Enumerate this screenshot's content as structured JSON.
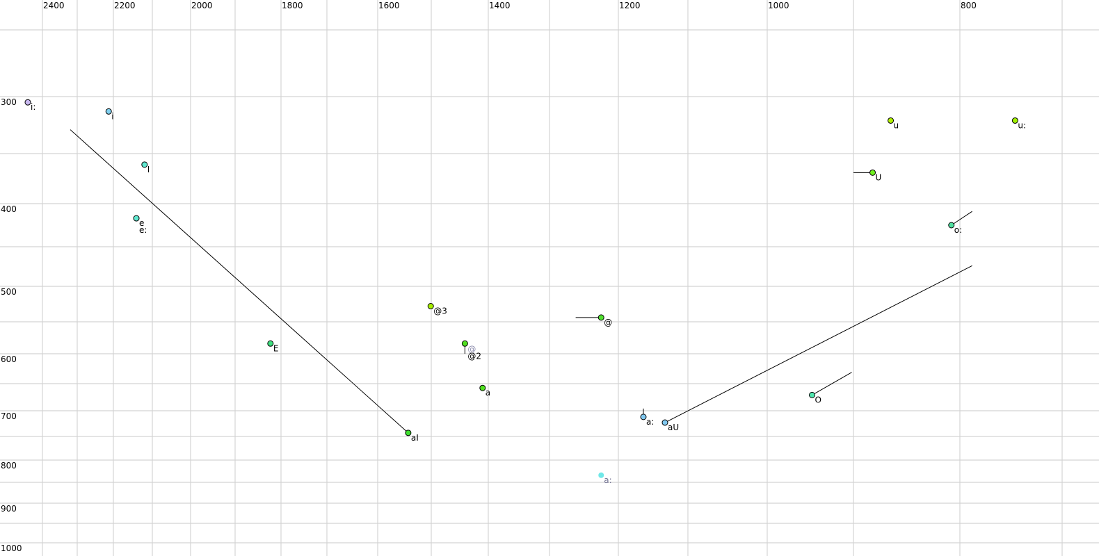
{
  "chart_data": {
    "type": "scatter",
    "title": "",
    "xlabel": "",
    "ylabel": "",
    "x_axis": "F2 (reversed, non-linear scale)",
    "y_axis": "F1 (increasing downward, non-linear scale)",
    "grid": true,
    "x_ticks": [
      2400,
      2200,
      2000,
      1800,
      1600,
      1400,
      1200,
      1000,
      800
    ],
    "y_ticks": [
      300,
      400,
      500,
      600,
      700,
      800,
      900,
      1000
    ],
    "x_gridlines": [
      2400,
      2300,
      2200,
      2100,
      2000,
      1900,
      1800,
      1700,
      1600,
      1500,
      1400,
      1300,
      1200,
      1100,
      1000,
      900,
      800,
      700
    ],
    "y_gridlines": [
      250,
      300,
      350,
      400,
      450,
      500,
      550,
      600,
      650,
      700,
      750,
      800,
      850,
      900,
      950,
      1000
    ],
    "points": [
      {
        "label": "i:",
        "f2": 2442,
        "f1": 305,
        "color": "#c8b8f0"
      },
      {
        "label": "i",
        "f2": 2213,
        "f1": 313,
        "color": "#80d0f0"
      },
      {
        "label": "I",
        "f2": 2120,
        "f1": 361,
        "color": "#60e8d0"
      },
      {
        "label": "e\ne:",
        "f2": 2141,
        "f1": 417,
        "color": "#60e8d0"
      },
      {
        "label": "E",
        "f2": 1823,
        "f1": 584,
        "color": "#40e080",
        "line_to": null
      },
      {
        "label": "aI",
        "f2": 1543,
        "f1": 743,
        "color": "#40e030",
        "line_to": {
          "f2": 2320,
          "f1": 329
        }
      },
      {
        "label": "@3",
        "f2": 1501,
        "f1": 528,
        "color": "#a8f000"
      },
      {
        "label": "@2",
        "extra_label": "@",
        "f2": 1441,
        "f1": 584,
        "color": "#50e020",
        "line_to": {
          "f2": 1441,
          "f1": 600
        }
      },
      {
        "label": "a",
        "f2": 1410,
        "f1": 658,
        "color": "#50e020"
      },
      {
        "label": "@",
        "f2": 1225,
        "f1": 544,
        "color": "#50e030",
        "line_to": {
          "f2": 1262,
          "f1": 544
        }
      },
      {
        "label": "a:",
        "f2": 1164,
        "f1": 712,
        "color": "#80c8f0",
        "line_to": {
          "f2": 1164,
          "f1": 696
        }
      },
      {
        "label": "aU",
        "f2": 1133,
        "f1": 723,
        "color": "#80c8f0",
        "line_to": {
          "f2": 788,
          "f1": 474
        }
      },
      {
        "label": "a:",
        "f2": 1225,
        "f1": 834,
        "color": "#70e8e8",
        "faint": true
      },
      {
        "label": "O",
        "f2": 948,
        "f1": 671,
        "color": "#50e8b0",
        "line_to": {
          "f2": 902,
          "f1": 631
        }
      },
      {
        "label": "U",
        "f2": 882,
        "f1": 369,
        "color": "#70f020",
        "line_to": {
          "f2": 900,
          "f1": 369
        }
      },
      {
        "label": "u",
        "f2": 865,
        "f1": 321,
        "color": "#b0f000"
      },
      {
        "label": "u:",
        "f2": 746,
        "f1": 321,
        "color": "#a0f000"
      },
      {
        "label": "o:",
        "f2": 808,
        "f1": 425,
        "color": "#50e0a0",
        "line_to": {
          "f2": 788,
          "f1": 409
        }
      }
    ]
  }
}
